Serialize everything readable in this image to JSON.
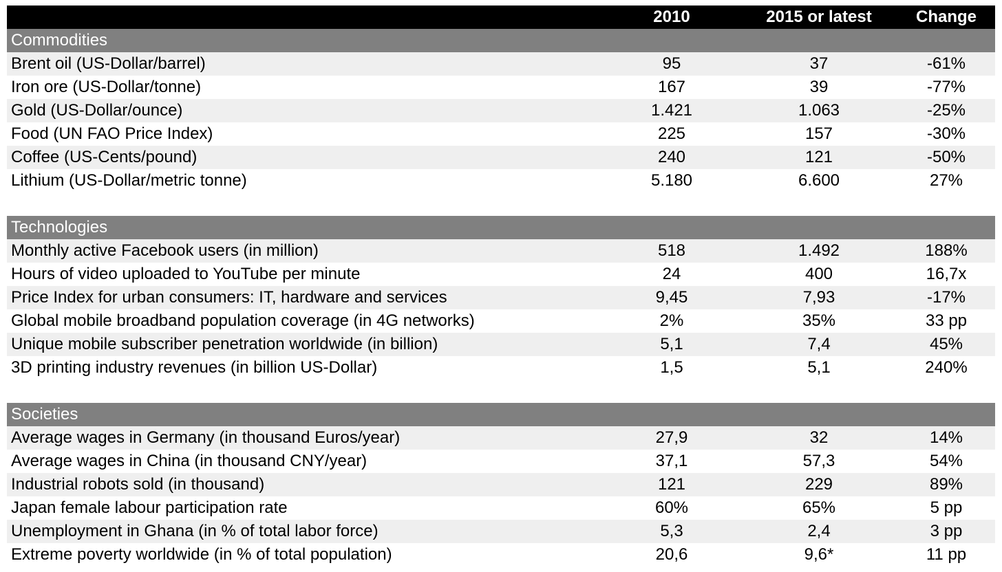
{
  "header": {
    "col1": "2010",
    "col2": "2015 or latest",
    "col3": "Change"
  },
  "sections": [
    {
      "title": "Commodities",
      "rows": [
        {
          "label": "Brent oil (US-Dollar/barrel)",
          "v2010": "95",
          "v2015": "37",
          "change": "-61%"
        },
        {
          "label": "Iron ore (US-Dollar/tonne)",
          "v2010": "167",
          "v2015": "39",
          "change": "-77%"
        },
        {
          "label": "Gold (US-Dollar/ounce)",
          "v2010": "1.421",
          "v2015": "1.063",
          "change": "-25%"
        },
        {
          "label": "Food (UN FAO Price Index)",
          "v2010": "225",
          "v2015": "157",
          "change": "-30%"
        },
        {
          "label": "Coffee (US-Cents/pound)",
          "v2010": "240",
          "v2015": "121",
          "change": "-50%"
        },
        {
          "label": "Lithium (US-Dollar/metric tonne)",
          "v2010": "5.180",
          "v2015": "6.600",
          "change": "27%"
        }
      ]
    },
    {
      "title": "Technologies",
      "rows": [
        {
          "label": "Monthly active Facebook users (in million)",
          "v2010": "518",
          "v2015": "1.492",
          "change": "188%"
        },
        {
          "label": "Hours of video uploaded to YouTube per minute",
          "v2010": "24",
          "v2015": "400",
          "change": "16,7x"
        },
        {
          "label": "Price Index for urban consumers: IT, hardware and services",
          "v2010": "9,45",
          "v2015": "7,93",
          "change": "-17%"
        },
        {
          "label": "Global mobile broadband population coverage (in 4G networks)",
          "v2010": "2%",
          "v2015": "35%",
          "change": "33 pp"
        },
        {
          "label": "Unique mobile subscriber penetration worldwide (in billion)",
          "v2010": "5,1",
          "v2015": "7,4",
          "change": "45%"
        },
        {
          "label": "3D printing industry revenues (in billion US-Dollar)",
          "v2010": "1,5",
          "v2015": "5,1",
          "change": "240%"
        }
      ]
    },
    {
      "title": "Societies",
      "rows": [
        {
          "label": "Average wages in Germany (in thousand Euros/year)",
          "v2010": "27,9",
          "v2015": "32",
          "change": "14%"
        },
        {
          "label": "Average wages in China (in thousand CNY/year)",
          "v2010": "37,1",
          "v2015": "57,3",
          "change": "54%"
        },
        {
          "label": "Industrial robots sold (in thousand)",
          "v2010": "121",
          "v2015": "229",
          "change": "89%"
        },
        {
          "label": "Japan female labour participation rate",
          "v2010": "60%",
          "v2015": "65%",
          "change": "5 pp"
        },
        {
          "label": "Unemployment in Ghana (in % of total labor force)",
          "v2010": "5,3",
          "v2015": "2,4",
          "change": "3 pp"
        },
        {
          "label": "Extreme poverty worldwide (in % of total population)",
          "v2010": "20,6",
          "v2015": "9,6*",
          "change": "11 pp"
        }
      ]
    }
  ],
  "colors": {
    "header_bg": "#000000",
    "section_bg": "#808080",
    "stripe_bg": "#efefef"
  }
}
